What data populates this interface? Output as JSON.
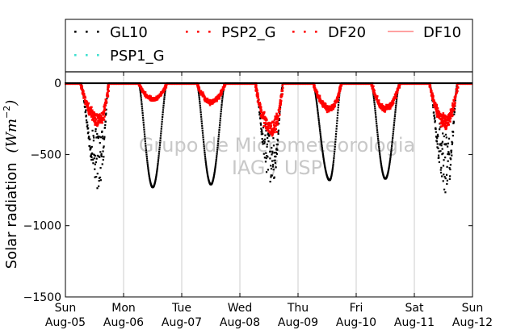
{
  "chart_data": {
    "type": "scatter",
    "ylabel": "Solar radiation",
    "ylabel_unit": "(Wm^{-2})",
    "ylabel_unit_parts": {
      "base": "(Wm",
      "exp": "−2",
      "close": ")"
    },
    "ylim": [
      -1500,
      80
    ],
    "yticks": [
      {
        "value": 0,
        "label": "0"
      },
      {
        "value": -500,
        "label": "−500"
      },
      {
        "value": -1000,
        "label": "−1000"
      },
      {
        "value": -1500,
        "label": "−1500"
      }
    ],
    "xlim": [
      "2012-08-05",
      "2012-08-12"
    ],
    "xticks": [
      {
        "day": "Sun",
        "date": "Aug-05"
      },
      {
        "day": "Mon",
        "date": "Aug-06"
      },
      {
        "day": "Tue",
        "date": "Aug-07"
      },
      {
        "day": "Wed",
        "date": "Aug-08"
      },
      {
        "day": "Thu",
        "date": "Aug-09"
      },
      {
        "day": "Fri",
        "date": "Aug-10"
      },
      {
        "day": "Sat",
        "date": "Aug-11"
      },
      {
        "day": "Sun",
        "date": "Aug-12"
      }
    ],
    "grid": "vertical",
    "watermark": [
      "Grupo de Micrometeorologia",
      "IAG / USP"
    ],
    "legend": {
      "placement": "top",
      "ncol": 4,
      "entries": [
        {
          "name": "GL10",
          "marker": "dots",
          "color": "#000000"
        },
        {
          "name": "PSP2_G",
          "marker": "dots",
          "color": "#ff0000"
        },
        {
          "name": "DF20",
          "marker": "dots",
          "color": "#ff0000"
        },
        {
          "name": "DF10",
          "marker": "line",
          "color": "#ff6b6b"
        },
        {
          "name": "PSP1_G",
          "marker": "dots",
          "color": "#40e0d0"
        }
      ]
    },
    "series": [
      {
        "name": "GL10",
        "color": "#000000",
        "daily_minimum": [
          -760,
          -730,
          -710,
          -750,
          -680,
          -670,
          -800
        ],
        "daily_peak_hour": [
          14,
          12,
          12,
          13,
          13,
          12,
          13
        ]
      },
      {
        "name": "DF20",
        "color": "#ff0000",
        "daily_minimum": [
          -270,
          -120,
          -140,
          -330,
          -190,
          -190,
          -280
        ]
      }
    ]
  }
}
